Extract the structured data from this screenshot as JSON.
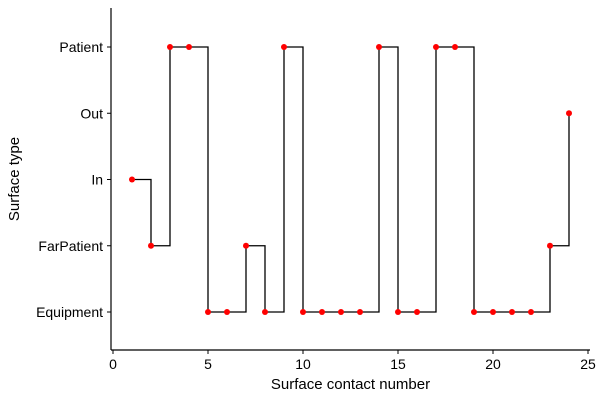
{
  "chart_data": {
    "type": "line",
    "step": "post",
    "xlabel": "Surface contact number",
    "ylabel": "Surface type",
    "categories": [
      "Equipment",
      "FarPatient",
      "In",
      "Out",
      "Patient"
    ],
    "xlim": [
      0,
      25
    ],
    "xticks": [
      0,
      5,
      10,
      15,
      20,
      25
    ],
    "grid": false,
    "legend": "none",
    "x": [
      1,
      2,
      3,
      4,
      5,
      6,
      7,
      8,
      9,
      10,
      11,
      12,
      13,
      14,
      15,
      16,
      17,
      18,
      19,
      20,
      21,
      22,
      23,
      24
    ],
    "y": [
      "In",
      "FarPatient",
      "Patient",
      "Patient",
      "Equipment",
      "Equipment",
      "FarPatient",
      "Equipment",
      "Patient",
      "Equipment",
      "Equipment",
      "Equipment",
      "Equipment",
      "Patient",
      "Equipment",
      "Equipment",
      "Patient",
      "Patient",
      "Equipment",
      "Equipment",
      "Equipment",
      "Equipment",
      "FarPatient",
      "Out"
    ],
    "line_color": "#000000",
    "point_color": "#ff0000"
  }
}
